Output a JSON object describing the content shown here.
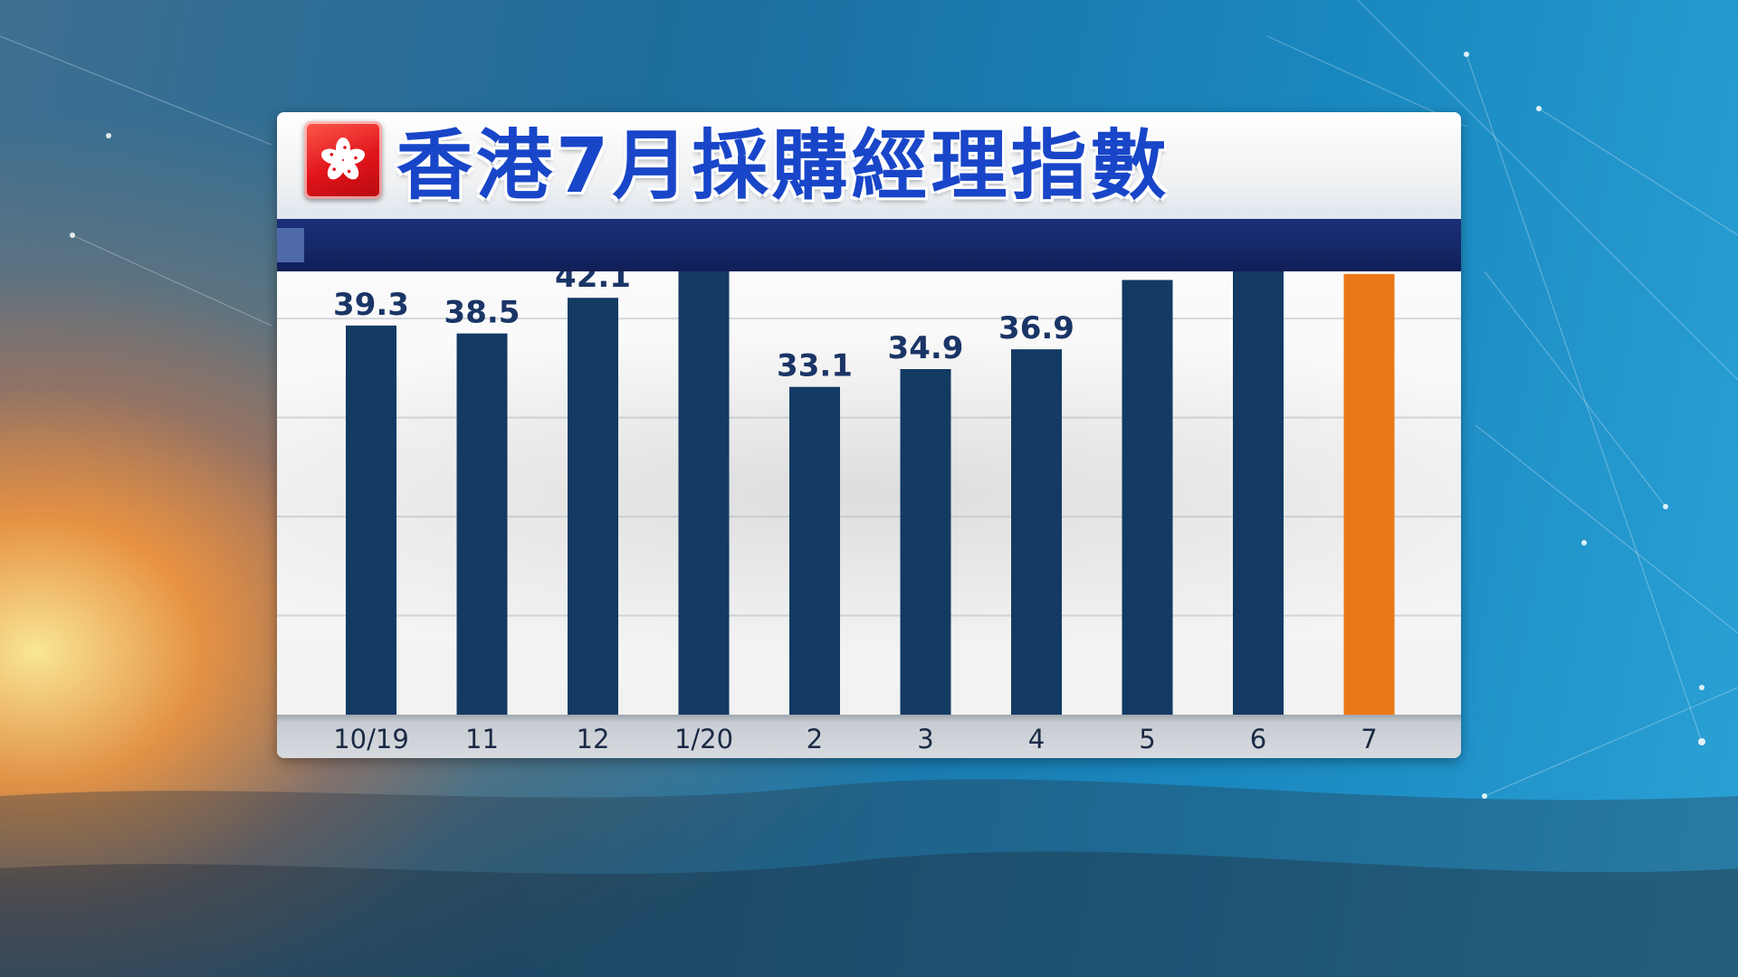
{
  "header": {
    "title": "香港7月採購經理指數"
  },
  "colors": {
    "bar_default": "#133a63",
    "bar_highlight": "#ec7716",
    "title_text": "#1946c8",
    "stripe": "#152869"
  },
  "icons": {
    "flag": "hong-kong-flag-icon"
  },
  "chart_data": {
    "type": "bar",
    "title": "香港7月採購經理指數",
    "xlabel": "",
    "ylabel": "",
    "categories": [
      "10/19",
      "11",
      "12",
      "1/20",
      "2",
      "3",
      "4",
      "5",
      "6",
      "7"
    ],
    "values": [
      39.3,
      38.5,
      42.1,
      46.8,
      33.1,
      34.9,
      36.9,
      43.9,
      49.6,
      44.5
    ],
    "highlight_index": 9,
    "ylim": [
      0,
      55
    ],
    "grid": true,
    "legend": "none"
  }
}
